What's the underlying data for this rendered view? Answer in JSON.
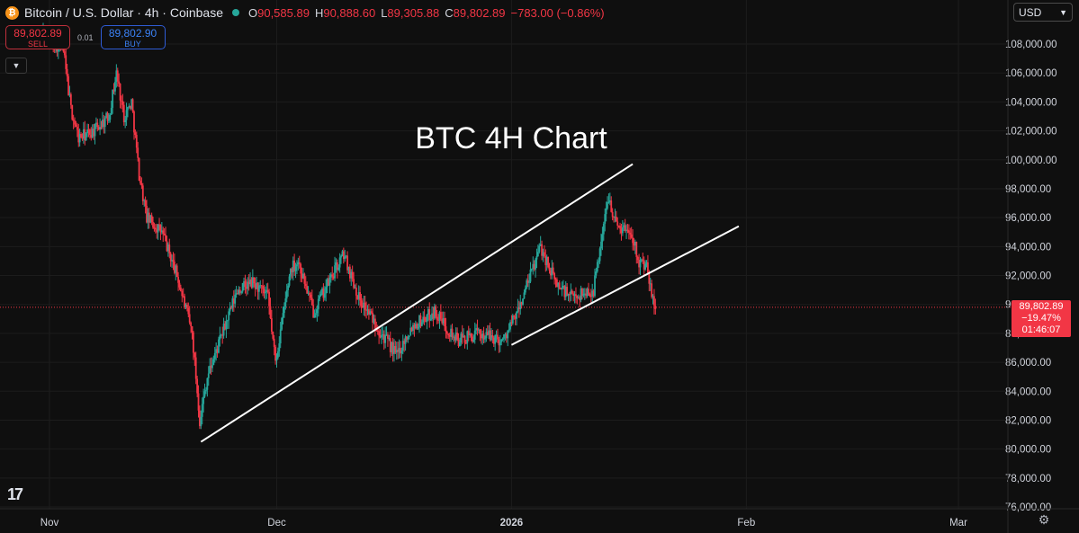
{
  "header": {
    "symbol": "Bitcoin / U.S. Dollar · 4h · Coinbase",
    "icon": "bitcoin-icon",
    "ohlc": [
      {
        "label": "O",
        "value": "90,585.89"
      },
      {
        "label": "H",
        "value": "90,888.60"
      },
      {
        "label": "L",
        "value": "89,305.88"
      },
      {
        "label": "C",
        "value": "89,802.89"
      }
    ],
    "change": "−783.00 (−0.86%)"
  },
  "trade": {
    "sell_price": "89,802.89",
    "sell_label": "SELL",
    "spread": "0.01",
    "buy_price": "89,802.90",
    "buy_label": "BUY"
  },
  "currency": "USD",
  "price_tag": {
    "price": "89,802.89",
    "change": "−19.47%",
    "countdown": "01:46:07"
  },
  "colors": {
    "background": "#0f0f0f",
    "up": "#26a69a",
    "down": "#f23645",
    "trendline": "#ffffff",
    "last_price_line": "#f23645"
  },
  "chart_data": {
    "type": "candlestick",
    "title": "BTC 4H Chart",
    "xlabel": "",
    "ylabel": "",
    "x_ticks": [
      "Nov",
      "Dec",
      "2026",
      "Feb",
      "Mar"
    ],
    "y_ticks": [
      "76,000.00",
      "78,000.00",
      "80,000.00",
      "82,000.00",
      "84,000.00",
      "86,000.00",
      "88,000.00",
      "90,000.00",
      "92,000.00",
      "94,000.00",
      "96,000.00",
      "98,000.00",
      "100,000.00",
      "102,000.00",
      "104,000.00",
      "106,000.00",
      "108,000.00"
    ],
    "ylim": [
      76000,
      109000
    ],
    "xlim": [
      "2025-11-01",
      "2026-03-01"
    ],
    "last_price": 89802.89,
    "path_points": [
      [
        "2025-10-31",
        109000
      ],
      [
        "2025-11-03",
        107500
      ],
      [
        "2025-11-04",
        103500
      ],
      [
        "2025-11-05",
        101500
      ],
      [
        "2025-11-07",
        102000
      ],
      [
        "2025-11-09",
        103000
      ],
      [
        "2025-11-10",
        106000
      ],
      [
        "2025-11-11",
        103000
      ],
      [
        "2025-11-12",
        104000
      ],
      [
        "2025-11-13",
        99000
      ],
      [
        "2025-11-14",
        96000
      ],
      [
        "2025-11-16",
        95000
      ],
      [
        "2025-11-18",
        92000
      ],
      [
        "2025-11-20",
        88000
      ],
      [
        "2025-11-21",
        82000
      ],
      [
        "2025-11-22",
        85000
      ],
      [
        "2025-11-24",
        88000
      ],
      [
        "2025-11-26",
        91000
      ],
      [
        "2025-11-28",
        91500
      ],
      [
        "2025-11-30",
        90500
      ],
      [
        "2025-12-01",
        86000
      ],
      [
        "2025-12-03",
        92500
      ],
      [
        "2025-12-04",
        93000
      ],
      [
        "2025-12-06",
        89500
      ],
      [
        "2025-12-09",
        92500
      ],
      [
        "2025-12-10",
        93500
      ],
      [
        "2025-12-12",
        90500
      ],
      [
        "2025-12-15",
        88000
      ],
      [
        "2025-12-17",
        86500
      ],
      [
        "2025-12-19",
        88500
      ],
      [
        "2025-12-22",
        89500
      ],
      [
        "2025-12-25",
        87500
      ],
      [
        "2025-12-28",
        88000
      ],
      [
        "2025-12-31",
        87500
      ],
      [
        "2026-01-02",
        89500
      ],
      [
        "2026-01-05",
        94000
      ],
      [
        "2026-01-07",
        91500
      ],
      [
        "2026-01-09",
        90500
      ],
      [
        "2026-01-12",
        91000
      ],
      [
        "2026-01-13",
        94500
      ],
      [
        "2026-01-14",
        97500
      ],
      [
        "2026-01-15",
        95500
      ],
      [
        "2026-01-17",
        95000
      ],
      [
        "2026-01-18",
        93000
      ],
      [
        "2026-01-19",
        92500
      ],
      [
        "2026-01-20",
        89802.89
      ]
    ],
    "trendlines": [
      {
        "from": [
          "2025-11-21",
          80500
        ],
        "to": [
          "2026-01-17",
          99700
        ]
      },
      {
        "from": [
          "2026-01-01",
          87200
        ],
        "to": [
          "2026-01-31",
          95400
        ]
      }
    ]
  }
}
